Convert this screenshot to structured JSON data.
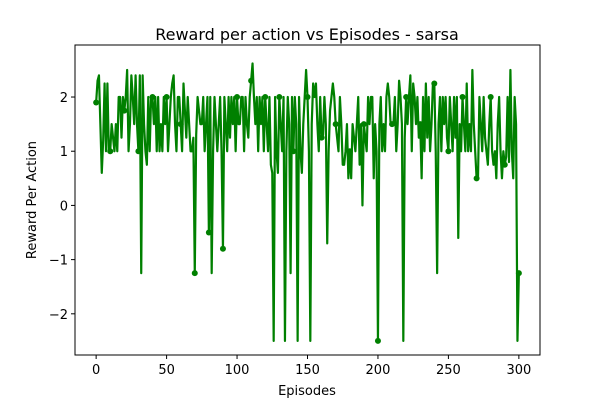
{
  "chart_data": {
    "type": "line",
    "title": "Reward per action vs Episodes - sarsa",
    "xlabel": "Episodes",
    "ylabel": "Reward Per Action",
    "x": [
      0,
      1,
      2,
      3,
      4,
      5,
      6,
      7,
      8,
      9,
      10,
      11,
      12,
      13,
      14,
      15,
      16,
      17,
      18,
      19,
      20,
      21,
      22,
      23,
      24,
      25,
      26,
      27,
      28,
      29,
      30,
      31,
      32,
      33,
      34,
      35,
      36,
      37,
      38,
      39,
      40,
      41,
      42,
      43,
      44,
      45,
      46,
      47,
      48,
      49,
      50,
      51,
      52,
      53,
      54,
      55,
      56,
      57,
      58,
      59,
      60,
      61,
      62,
      63,
      64,
      65,
      66,
      67,
      68,
      69,
      70,
      71,
      72,
      73,
      74,
      75,
      76,
      77,
      78,
      79,
      80,
      81,
      82,
      83,
      84,
      85,
      86,
      87,
      88,
      89,
      90,
      91,
      92,
      93,
      94,
      95,
      96,
      97,
      98,
      99,
      100,
      101,
      102,
      103,
      104,
      105,
      106,
      107,
      108,
      109,
      110,
      111,
      112,
      113,
      114,
      115,
      116,
      117,
      118,
      119,
      120,
      121,
      122,
      123,
      124,
      125,
      126,
      127,
      128,
      129,
      130,
      131,
      132,
      133,
      134,
      135,
      136,
      137,
      138,
      139,
      140,
      141,
      142,
      143,
      144,
      145,
      146,
      147,
      148,
      149,
      150,
      151,
      152,
      153,
      154,
      155,
      156,
      157,
      158,
      159,
      160,
      161,
      162,
      163,
      164,
      165,
      166,
      167,
      168,
      169,
      170,
      171,
      172,
      173,
      174,
      175,
      176,
      177,
      178,
      179,
      180,
      181,
      182,
      183,
      184,
      185,
      186,
      187,
      188,
      189,
      190,
      191,
      192,
      193,
      194,
      195,
      196,
      197,
      198,
      199,
      200,
      201,
      202,
      203,
      204,
      205,
      206,
      207,
      208,
      209,
      210,
      211,
      212,
      213,
      214,
      215,
      216,
      217,
      218,
      219,
      220,
      221,
      222,
      223,
      224,
      225,
      226,
      227,
      228,
      229,
      230,
      231,
      232,
      233,
      234,
      235,
      236,
      237,
      238,
      239,
      240,
      241,
      242,
      243,
      244,
      245,
      246,
      247,
      248,
      249,
      250,
      251,
      252,
      253,
      254,
      255,
      256,
      257,
      258,
      259,
      260,
      261,
      262,
      263,
      264,
      265,
      266,
      267,
      268,
      269,
      270,
      271,
      272,
      273,
      274,
      275,
      276,
      277,
      278,
      279,
      280,
      281,
      282,
      283,
      284,
      285,
      286,
      287,
      288,
      289,
      290,
      291,
      292,
      293,
      294,
      295,
      296,
      297,
      298,
      299,
      300
    ],
    "series": [
      {
        "color": "#008000",
        "marker_every": 10,
        "values": [
          1.9,
          2.3,
          2.4,
          1.5,
          0.6,
          1.2,
          2.25,
          1.0,
          2.25,
          1.0,
          1.0,
          1.5,
          1.25,
          1.0,
          1.5,
          1.0,
          2.0,
          2.0,
          1.25,
          2.0,
          1.75,
          2.0,
          2.5,
          1.0,
          1.5,
          2.4,
          2.0,
          1.5,
          2.4,
          1.5,
          1.0,
          2.4,
          -1.25,
          2.4,
          1.5,
          1.0,
          0.75,
          2.0,
          1.0,
          2.0,
          2.0,
          1.5,
          2.0,
          1.0,
          2.0,
          1.0,
          1.5,
          1.0,
          2.0,
          1.5,
          2.0,
          1.0,
          1.5,
          2.0,
          2.25,
          2.4,
          1.5,
          1.0,
          2.0,
          2.0,
          1.5,
          1.0,
          2.25,
          1.75,
          1.25,
          2.0,
          1.5,
          1.0,
          1.0,
          1.25,
          -1.25,
          1.3,
          2.0,
          1.75,
          1.5,
          1.5,
          2.0,
          1.0,
          1.5,
          2.0,
          -0.5,
          2.0,
          -1.25,
          1.0,
          2.0,
          1.5,
          1.0,
          1.5,
          2.0,
          1.0,
          -0.8,
          2.0,
          1.5,
          1.0,
          2.0,
          1.25,
          2.0,
          1.5,
          2.0,
          1.0,
          2.0,
          1.5,
          1.5,
          2.0,
          2.0,
          1.0,
          2.0,
          1.5,
          1.25,
          2.0,
          2.3,
          2.62,
          2.0,
          1.5,
          2.0,
          1.0,
          2.0,
          1.5,
          2.0,
          1.0,
          2.0,
          1.5,
          1.0,
          2.0,
          0.75,
          0.6,
          -2.5,
          2.0,
          1.0,
          0.6,
          2.0,
          1.5,
          1.0,
          2.0,
          -2.5,
          1.0,
          2.0,
          1.5,
          -1.25,
          2.0,
          1.0,
          2.0,
          1.5,
          -2.5,
          2.0,
          1.0,
          0.6,
          1.5,
          2.0,
          2.5,
          2.0,
          1.0,
          -2.5,
          1.5,
          2.25,
          2.0,
          2.25,
          1.5,
          1.0,
          2.0,
          1.25,
          1.3,
          2.0,
          1.5,
          -0.7,
          1.0,
          1.75,
          2.0,
          2.25,
          2.0,
          1.5,
          1.25,
          1.0,
          2.0,
          1.5,
          0.75,
          0.75,
          1.0,
          1.5,
          0.5,
          1.0,
          0.5,
          1.5,
          1.25,
          1.0,
          1.5,
          2.0,
          0.75,
          1.5,
          0.0,
          1.5,
          1.25,
          1.0,
          2.0,
          1.5,
          2.0,
          2.0,
          0.5,
          1.5,
          1.0,
          -2.5,
          1.5,
          2.0,
          1.0,
          1.5,
          1.0,
          2.0,
          2.25,
          2.0,
          1.5,
          1.5,
          1.5,
          2.0,
          1.0,
          1.5,
          2.3,
          2.0,
          1.5,
          -2.5,
          1.25,
          2.0,
          1.5,
          2.0,
          2.4,
          1.0,
          2.25,
          2.0,
          1.5,
          2.0,
          1.25,
          1.5,
          0.5,
          2.0,
          1.0,
          2.25,
          1.25,
          2.0,
          1.0,
          1.5,
          2.25,
          2.25,
          1.0,
          -1.25,
          1.5,
          2.0,
          1.0,
          2.0,
          1.5,
          2.0,
          1.25,
          1.0,
          2.0,
          1.5,
          1.0,
          2.0,
          1.25,
          2.0,
          -0.6,
          1.5,
          1.0,
          2.0,
          1.5,
          1.0,
          2.25,
          1.0,
          1.5,
          1.0,
          2.5,
          1.5,
          1.0,
          0.5,
          0.5,
          2.0,
          1.5,
          1.0,
          2.0,
          1.25,
          1.0,
          0.75,
          1.5,
          2.0,
          1.0,
          0.75,
          1.0,
          0.5,
          1.5,
          2.0,
          1.0,
          0.5,
          1.0,
          0.75,
          0.9,
          2.0,
          0.8,
          2.5,
          1.0,
          0.5,
          2.0,
          1.5,
          -2.5,
          -1.25
        ]
      }
    ],
    "xlim": [
      -15,
      315
    ],
    "ylim": [
      -2.76,
      2.96
    ],
    "xticks": [
      0,
      50,
      100,
      150,
      200,
      250,
      300
    ],
    "yticks": [
      {
        "value": -2,
        "label": "−2"
      },
      {
        "value": -1,
        "label": "−1"
      },
      0,
      1,
      2
    ],
    "grid": false
  }
}
